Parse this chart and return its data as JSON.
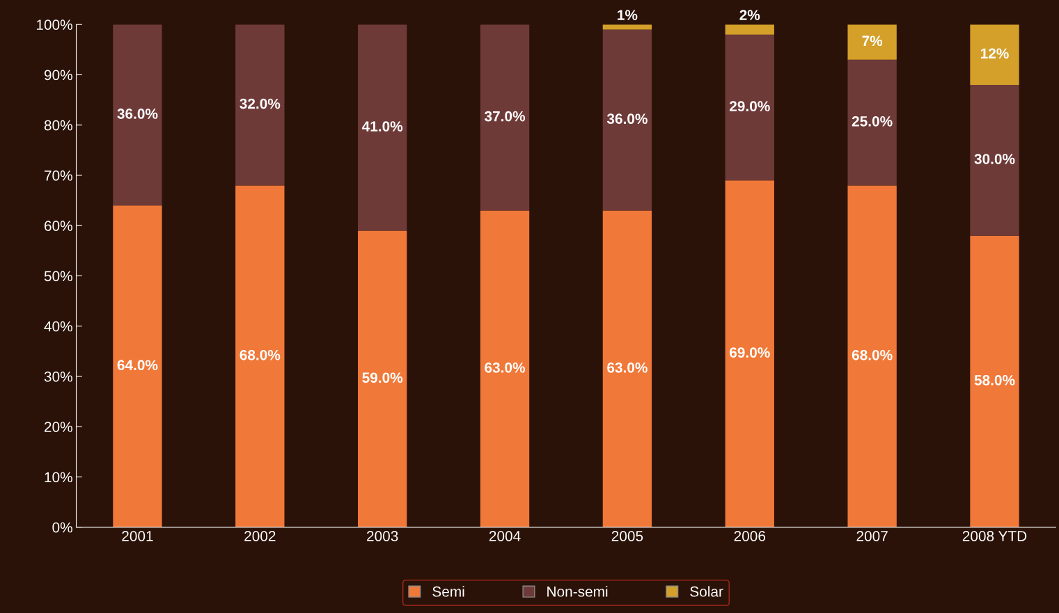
{
  "chart_data": {
    "type": "bar",
    "stacked": true,
    "categories": [
      "2001",
      "2002",
      "2003",
      "2004",
      "2005",
      "2006",
      "2007",
      "2008 YTD"
    ],
    "series": [
      {
        "name": "Semi",
        "color": "#f07838",
        "values": [
          64,
          68,
          59,
          63,
          63,
          69,
          68,
          58
        ],
        "value_labels": [
          "64.0%",
          "68.0%",
          "59.0%",
          "63.0%",
          "63.0%",
          "69.0%",
          "68.0%",
          "58.0%"
        ]
      },
      {
        "name": "Non-semi",
        "color": "#6e3a38",
        "values": [
          36,
          32,
          41,
          37,
          36,
          29,
          25,
          30
        ],
        "value_labels": [
          "36.0%",
          "32.0%",
          "41.0%",
          "37.0%",
          "36.0%",
          "29.0%",
          "25.0%",
          "30.0%"
        ]
      },
      {
        "name": "Solar",
        "color": "#d4a02a",
        "values": [
          0,
          0,
          0,
          0,
          1,
          2,
          7,
          12
        ],
        "value_labels": [
          null,
          null,
          null,
          null,
          "1%",
          "2%",
          "7%",
          "12%"
        ]
      }
    ],
    "ylim": [
      0,
      100
    ],
    "yticks": [
      {
        "value": 0,
        "label": "0%"
      },
      {
        "value": 10,
        "label": "10%"
      },
      {
        "value": 20,
        "label": "20%"
      },
      {
        "value": 30,
        "label": "30%"
      },
      {
        "value": 40,
        "label": "40%"
      },
      {
        "value": 50,
        "label": "50%"
      },
      {
        "value": 60,
        "label": "60%"
      },
      {
        "value": 70,
        "label": "70%"
      },
      {
        "value": 80,
        "label": "80%"
      },
      {
        "value": 90,
        "label": "90%"
      },
      {
        "value": 100,
        "label": "100%"
      }
    ],
    "legend": "bottom",
    "grid": false
  }
}
